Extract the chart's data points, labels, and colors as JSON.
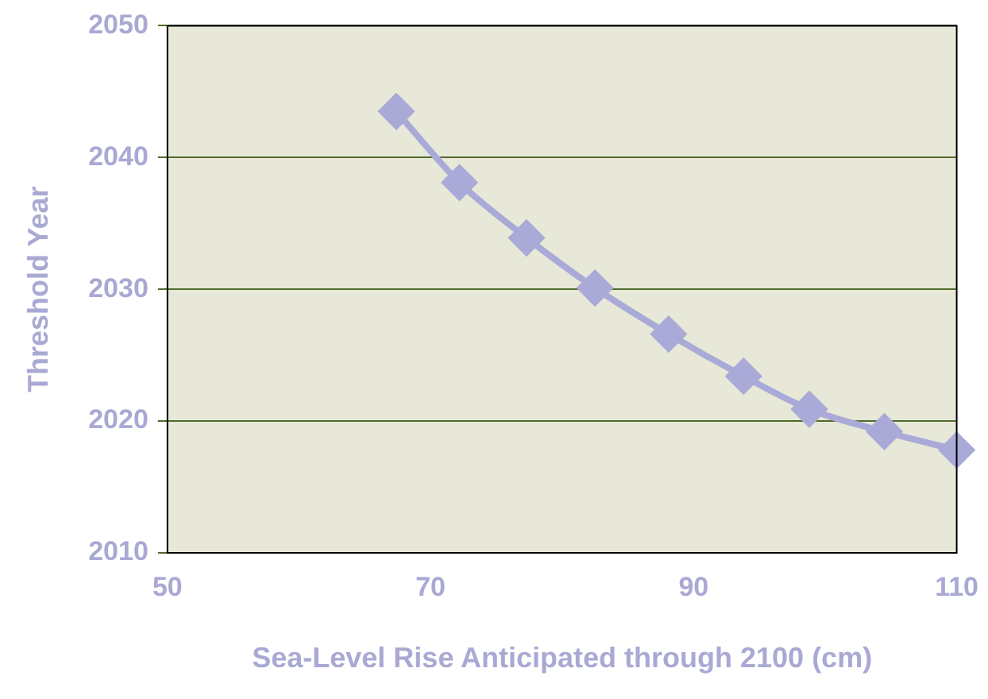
{
  "chart_data": {
    "type": "line",
    "xlabel": "Sea-Level Rise Anticipated through 2100 (cm)",
    "ylabel": "Threshold Year",
    "x": [
      67.4,
      72.2,
      77.3,
      82.5,
      88.1,
      93.8,
      98.8,
      104.5,
      110
    ],
    "series": [
      {
        "color": "#aaaad8",
        "values": [
          2043.5,
          2038.1,
          2033.9,
          2030.1,
          2026.6,
          2023.4,
          2020.9,
          2019.2,
          2017.8
        ]
      }
    ],
    "xlim": [
      50,
      110
    ],
    "xticks": [
      50,
      70,
      90,
      110
    ],
    "ylim": [
      2010,
      2050
    ],
    "yticks": [
      2010,
      2020,
      2030,
      2040,
      2050
    ],
    "grid": "y",
    "legend": false,
    "marker": "diamond",
    "line_style": "solid"
  }
}
